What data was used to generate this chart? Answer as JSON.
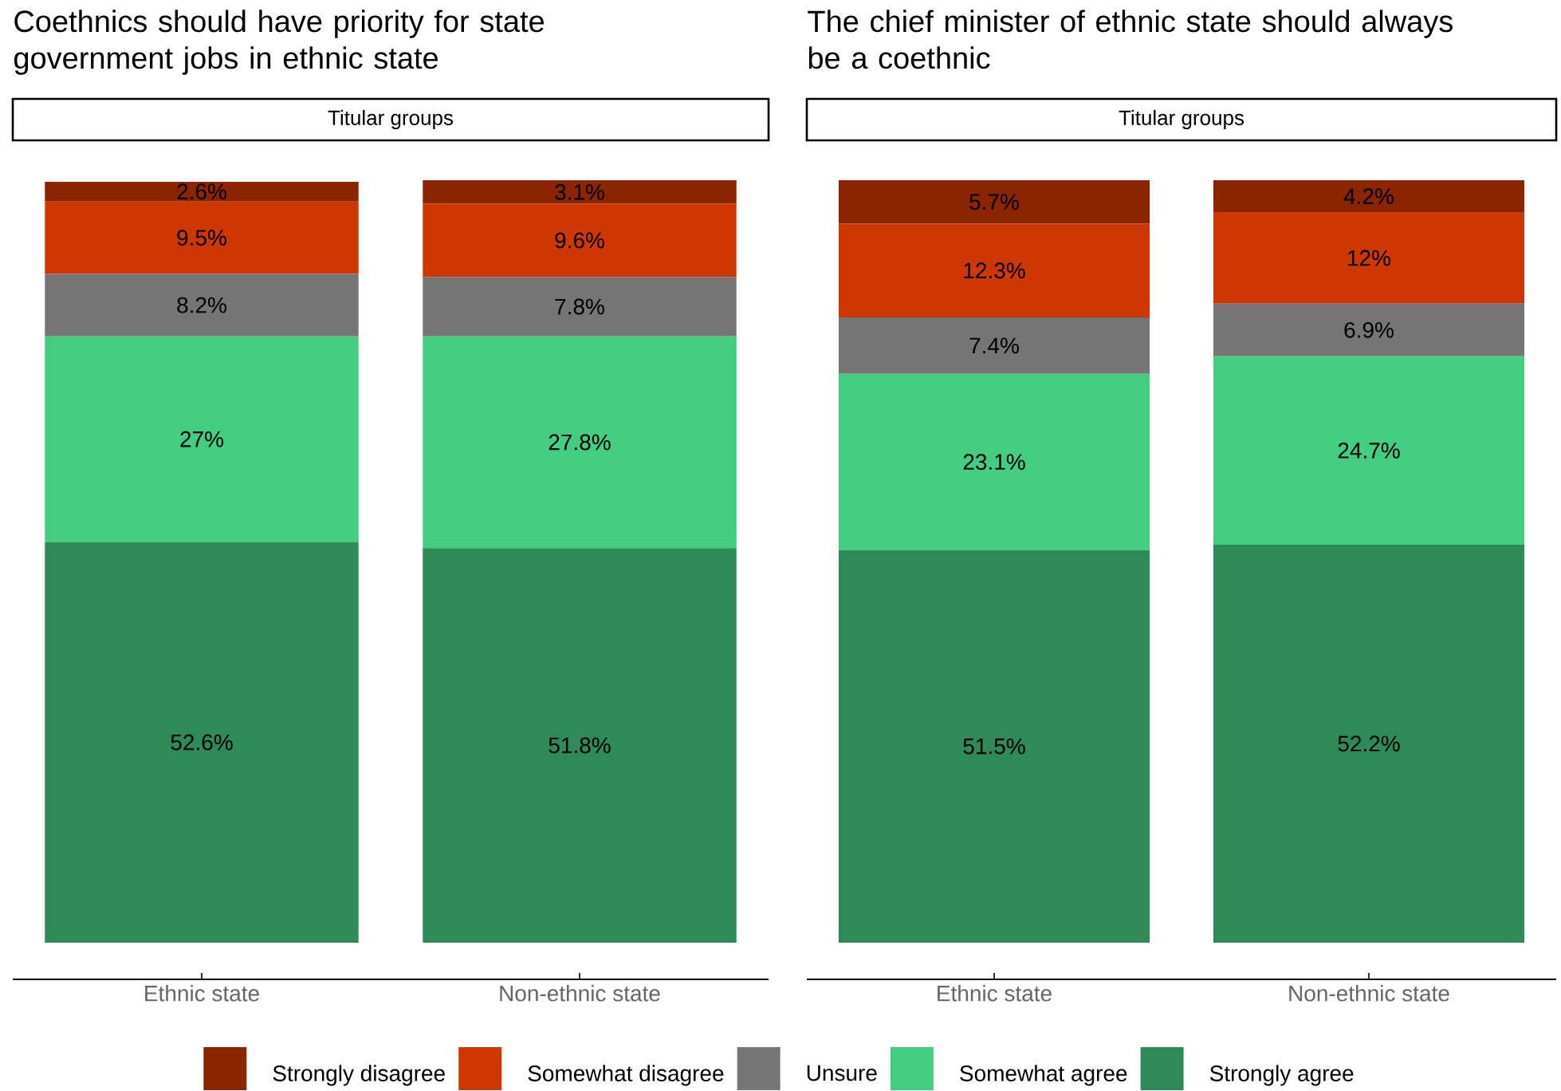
{
  "chart_data": [
    {
      "type": "bar",
      "title": "Coethnics should have priority for state government jobs in ethnic state",
      "subtitle": "Titular groups",
      "categories": [
        "Ethnic state",
        "Non-ethnic state"
      ],
      "stacked": true,
      "legend": "bottom",
      "series": [
        {
          "name": "Strongly agree",
          "color": "#2e8b57",
          "values": [
            52.6,
            51.8
          ],
          "value_labels": [
            "52.6%",
            "51.8%"
          ]
        },
        {
          "name": "Somewhat agree",
          "color": "#43cd80",
          "values": [
            27,
            27.8
          ],
          "value_labels": [
            "27%",
            "27.8%"
          ]
        },
        {
          "name": "Unsure",
          "color": "#757575",
          "values": [
            8.2,
            7.8
          ],
          "value_labels": [
            "8.2%",
            "7.8%"
          ]
        },
        {
          "name": "Somewhat disagree",
          "color": "#cd3700",
          "values": [
            9.5,
            9.6
          ],
          "value_labels": [
            "9.5%",
            "9.6%"
          ]
        },
        {
          "name": "Strongly disagree",
          "color": "#8b2500",
          "values": [
            2.6,
            3.1
          ],
          "value_labels": [
            "2.6%",
            "3.1%"
          ]
        }
      ]
    },
    {
      "type": "bar",
      "title": "The chief minister of ethnic state should always be a coethnic",
      "subtitle": "Titular groups",
      "categories": [
        "Ethnic state",
        "Non-ethnic state"
      ],
      "stacked": true,
      "series": [
        {
          "color": "#2e8b57",
          "values": [
            51.5,
            52.2
          ],
          "value_labels": [
            "51.5%",
            "52.2%"
          ]
        },
        {
          "color": "#43cd80",
          "values": [
            23.1,
            24.7
          ],
          "value_labels": [
            "23.1%",
            "24.7%"
          ]
        },
        {
          "color": "#757575",
          "values": [
            7.4,
            6.9
          ],
          "value_labels": [
            "7.4%",
            "6.9%"
          ]
        },
        {
          "color": "#cd3700",
          "values": [
            12.3,
            12
          ],
          "value_labels": [
            "12.3%",
            "12%"
          ]
        },
        {
          "color": "#8b2500",
          "values": [
            5.7,
            4.2
          ],
          "value_labels": [
            "5.7%",
            "4.2%"
          ]
        }
      ]
    }
  ]
}
